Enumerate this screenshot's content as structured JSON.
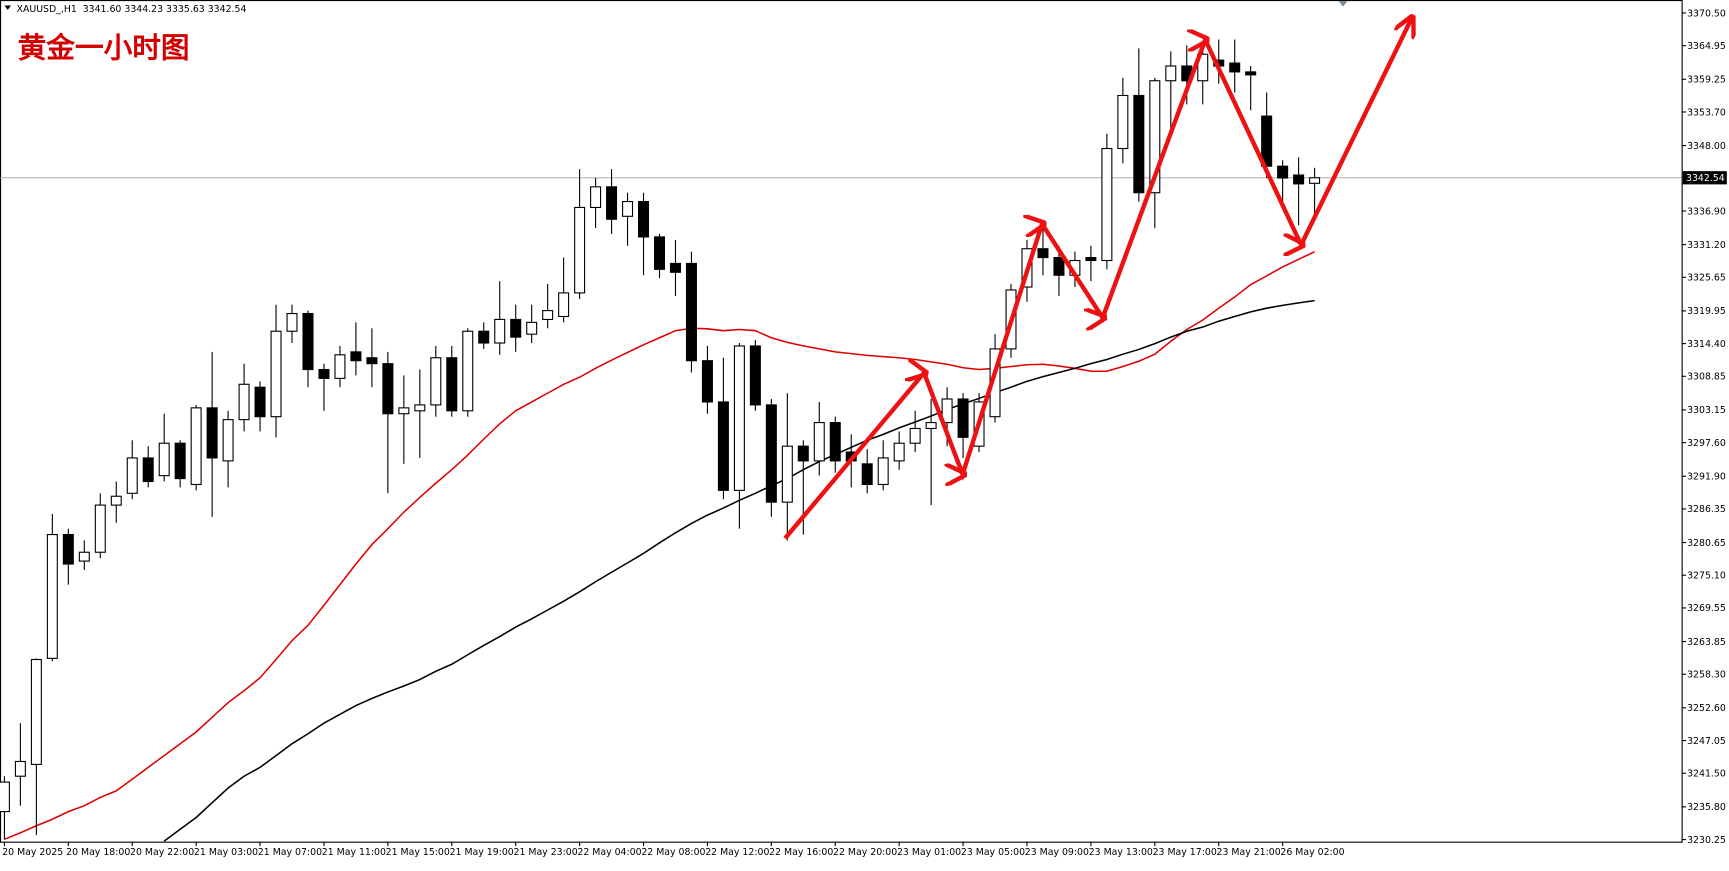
{
  "header": {
    "symbol": "XAUUSD_,H1",
    "ohlc": "3341.60 3344.23 3335.63 3342.54"
  },
  "chart_data": {
    "type": "candlestick",
    "title": "黄金一小时图",
    "categories": [
      "20 May 2025",
      null,
      null,
      null,
      "20 May 18:00",
      null,
      null,
      null,
      "20 May 22:00",
      null,
      null,
      null,
      "21 May 03:00",
      null,
      null,
      null,
      "21 May 07:00",
      null,
      null,
      null,
      "21 May 11:00",
      null,
      null,
      null,
      "21 May 15:00",
      null,
      null,
      null,
      "21 May 19:00",
      null,
      null,
      null,
      "21 May 23:00",
      null,
      null,
      null,
      "22 May 04:00",
      null,
      null,
      null,
      "22 May 08:00",
      null,
      null,
      null,
      "22 May 12:00",
      null,
      null,
      null,
      "22 May 16:00",
      null,
      null,
      null,
      "22 May 20:00",
      null,
      null,
      null,
      "23 May 01:00",
      null,
      null,
      null,
      "23 May 05:00",
      null,
      null,
      null,
      "23 May 09:00",
      null,
      null,
      null,
      "23 May 13:00",
      null,
      null,
      null,
      "23 May 17:00",
      null,
      null,
      null,
      "23 May 21:00",
      null,
      null,
      null,
      "26 May 02:00",
      null,
      null
    ],
    "open": [
      3235,
      3241,
      3243,
      3261,
      3282,
      3277.5,
      3279,
      3287,
      3289,
      3295,
      3292,
      3297.5,
      3290.5,
      3303.5,
      3294.5,
      3301.5,
      3307,
      3302,
      3316.5,
      3319.5,
      3310,
      3308.5,
      3313,
      3312,
      3311,
      3302.5,
      3303,
      3304,
      3312,
      3303,
      3316.5,
      3314.5,
      3318.5,
      3316,
      3318.5,
      3319,
      3323,
      3337.5,
      3341,
      3336,
      3338.5,
      3332.5,
      3328,
      3328,
      3311.5,
      3304.5,
      3289.5,
      3314,
      3304,
      3287.5,
      3297,
      3294.5,
      3301,
      3296,
      3294,
      3290.5,
      3294.5,
      3297.5,
      3300,
      3301,
      3305,
      3297,
      3302,
      3313.5,
      3324,
      3330.5,
      3329,
      3326,
      3329,
      3328.5,
      3347.5,
      3356.5,
      3340,
      3359,
      3361.5,
      3359,
      3362.5,
      3362,
      3360.5,
      3353,
      3344.5,
      3343,
      3341.6
    ],
    "high": [
      3241,
      3250,
      3261,
      3285.5,
      3283,
      3281,
      3289,
      3291,
      3298,
      3297,
      3302.5,
      3298,
      3304,
      3313,
      3303,
      3311,
      3308,
      3321,
      3321,
      3320,
      3311,
      3314,
      3318,
      3317,
      3313,
      3309,
      3310,
      3314,
      3314,
      3317,
      3318,
      3325,
      3321,
      3321,
      3324.5,
      3329,
      3344,
      3342.5,
      3344,
      3340,
      3340,
      3333,
      3332,
      3330,
      3314,
      3312,
      3314.5,
      3315,
      3305,
      3306,
      3298,
      3304.5,
      3302,
      3299,
      3296.5,
      3298,
      3299.5,
      3303,
      3305,
      3307,
      3306,
      3306,
      3316,
      3324.5,
      3332,
      3334,
      3331,
      3330,
      3331,
      3350,
      3359.5,
      3364.5,
      3359.5,
      3364,
      3365,
      3365.5,
      3366,
      3366,
      3361.5,
      3357,
      3345.5,
      3346,
      3344.23
    ],
    "low": [
      3230.3,
      3236,
      3231,
      3260.5,
      3273.5,
      3276,
      3278,
      3284,
      3288,
      3290,
      3291,
      3290,
      3289.5,
      3285,
      3290,
      3299.5,
      3299.5,
      3298.5,
      3314.5,
      3307,
      3303,
      3307,
      3309,
      3307,
      3289,
      3294,
      3295,
      3302,
      3302,
      3302,
      3313.5,
      3312.5,
      3313,
      3314.5,
      3317,
      3318,
      3322,
      3334,
      3333,
      3331,
      3326,
      3325.5,
      3322.5,
      3309.5,
      3302.5,
      3288,
      3283,
      3303,
      3285,
      3281,
      3282,
      3292,
      3292.5,
      3290,
      3289,
      3289.5,
      3293,
      3296,
      3287,
      3297,
      3295,
      3296,
      3301,
      3312,
      3321.5,
      3326,
      3322.5,
      3324,
      3325,
      3327,
      3345,
      3338.5,
      3334,
      3350,
      3355,
      3355,
      3358.5,
      3357,
      3354,
      3342.5,
      3338,
      3334.5,
      3335.63
    ],
    "close": [
      3240,
      3243.5,
      3260.8,
      3282,
      3277,
      3279,
      3287,
      3288.5,
      3295,
      3291,
      3297.5,
      3291.5,
      3303.5,
      3295,
      3301.5,
      3307.5,
      3302,
      3316.5,
      3319.5,
      3310,
      3308.5,
      3312.5,
      3311.5,
      3311,
      3302.5,
      3303.5,
      3304,
      3312,
      3303,
      3316.5,
      3314.5,
      3318.5,
      3315.5,
      3318,
      3320,
      3323,
      3337.5,
      3341,
      3335.5,
      3338.5,
      3332.5,
      3327,
      3326.5,
      3311.5,
      3304.5,
      3289.5,
      3314,
      3304,
      3287.5,
      3297,
      3294.5,
      3301,
      3294.5,
      3294.5,
      3290.5,
      3295,
      3297.5,
      3300,
      3301,
      3305,
      3298.5,
      3304.5,
      3313.5,
      3323.5,
      3330.5,
      3329,
      3326,
      3328.5,
      3328.5,
      3347.5,
      3356.5,
      3340,
      3359,
      3361.5,
      3359,
      3363.5,
      3361.5,
      3360.5,
      3360,
      3344.5,
      3342.5,
      3341.5,
      3342.54
    ],
    "bull_color": "#ffffff",
    "bear_color": "#000000",
    "lines": [
      {
        "color": "#e00000",
        "values": [
          3230.3,
          3231.4,
          3232.6,
          3233.7,
          3235,
          3236,
          3237.4,
          3238.5,
          3240.5,
          3242.5,
          3244.5,
          3246.5,
          3248.5,
          3251,
          3253.5,
          3255.5,
          3257.7,
          3260.8,
          3264,
          3266.6,
          3270,
          3273.5,
          3277,
          3280.3,
          3283,
          3285.8,
          3288.3,
          3290.7,
          3293,
          3295.5,
          3298.2,
          3300.8,
          3303,
          3304.5,
          3306,
          3307.5,
          3308.7,
          3310.2,
          3311.6,
          3312.9,
          3314.2,
          3315.4,
          3316.6,
          3317,
          3316.9,
          3316.6,
          3316.8,
          3316.6,
          3315.4,
          3314.6,
          3314,
          3313.5,
          3313,
          3312.7,
          3312.4,
          3312.2,
          3312,
          3311.7,
          3311.3,
          3310.9,
          3310.3,
          3310,
          3310.2,
          3310.5,
          3310.8,
          3310.9,
          3310.6,
          3310.2,
          3309.7,
          3309.7,
          3310.5,
          3311.4,
          3312.6,
          3314.8,
          3316.8,
          3318.4,
          3320.4,
          3322.3,
          3324.4,
          3325.9,
          3327.4,
          3328.7,
          3330
        ]
      },
      {
        "color": "#000000",
        "values": [
          null,
          null,
          null,
          null,
          null,
          null,
          null,
          null,
          null,
          null,
          3230,
          3232,
          3234,
          3236.5,
          3239,
          3241,
          3242.5,
          3244.5,
          3246.5,
          3248.2,
          3250,
          3251.5,
          3253,
          3254.2,
          3255.3,
          3256.3,
          3257.4,
          3258.8,
          3260,
          3261.6,
          3263.2,
          3264.7,
          3266.3,
          3267.7,
          3269.2,
          3270.7,
          3272.3,
          3274,
          3275.6,
          3277.2,
          3278.8,
          3280.6,
          3282.3,
          3283.9,
          3285.3,
          3286.5,
          3287.8,
          3289,
          3290.3,
          3291.5,
          3293,
          3294.4,
          3295.6,
          3296.8,
          3298,
          3299,
          3300.1,
          3301.1,
          3302.1,
          3303.2,
          3304.2,
          3305.1,
          3306.1,
          3307,
          3308,
          3308.8,
          3309.5,
          3310.2,
          3311,
          3311.7,
          3312.6,
          3313.4,
          3314.4,
          3315.5,
          3316.5,
          3317.2,
          3318.2,
          3319,
          3319.8,
          3320.4,
          3320.9,
          3321.3,
          3321.7
        ]
      }
    ],
    "current_price": 3342.54,
    "ylim": [
      3229.9,
      3372.7
    ],
    "yticks": [
      {
        "value": 3370.5,
        "label": "3370.50"
      },
      3364.95,
      3359.25,
      {
        "value": 3353.7,
        "label": "3353.70"
      },
      {
        "value": 3348,
        "label": "3348.00"
      },
      {
        "value": 3336.9,
        "label": "3336.90"
      },
      {
        "value": 3331.2,
        "label": "3331.20"
      },
      3325.65,
      3319.95,
      {
        "value": 3314.4,
        "label": "3314.40"
      },
      3308.85,
      3303.15,
      {
        "value": 3297.6,
        "label": "3297.60"
      },
      {
        "value": 3291.9,
        "label": "3291.90"
      },
      3286.35,
      3280.65,
      {
        "value": 3275.1,
        "label": "3275.10"
      },
      3269.55,
      3263.85,
      {
        "value": 3258.3,
        "label": "3258.30"
      },
      {
        "value": 3252.6,
        "label": "3252.60"
      },
      3247.05,
      {
        "value": 3241.5,
        "label": "3241.50"
      },
      {
        "value": 3235.8,
        "label": "3235.80"
      },
      3230.25
    ]
  }
}
